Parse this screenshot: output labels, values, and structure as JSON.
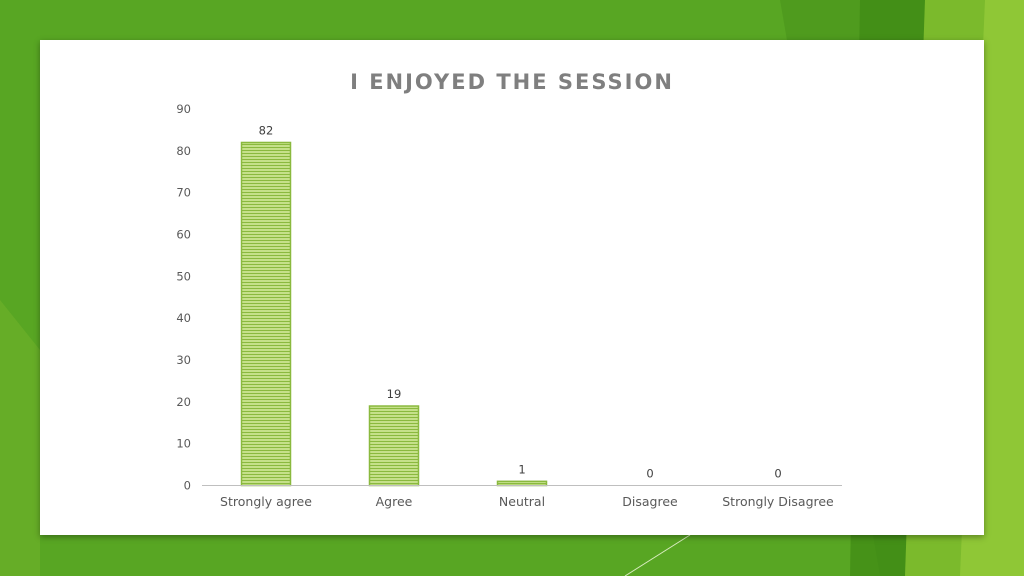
{
  "colors": {
    "background": "#58a623",
    "bar_fill": "#c5e08a",
    "bar_stripe": "#8ab93e",
    "bar_edge": "#8ab93e",
    "axis": "#bfbfbf"
  },
  "chart_data": {
    "type": "bar",
    "title": "I ENJOYED THE SESSION",
    "categories": [
      "Strongly agree",
      "Agree",
      "Neutral",
      "Disagree",
      "Strongly Disagree"
    ],
    "values": [
      82,
      19,
      1,
      0,
      0
    ],
    "data_labels": [
      "82",
      "19",
      "1",
      "0",
      "0"
    ],
    "ylim": [
      0,
      90
    ],
    "yticks": [
      0,
      10,
      20,
      30,
      40,
      50,
      60,
      70,
      80,
      90
    ],
    "grid": false,
    "legend": "none"
  }
}
